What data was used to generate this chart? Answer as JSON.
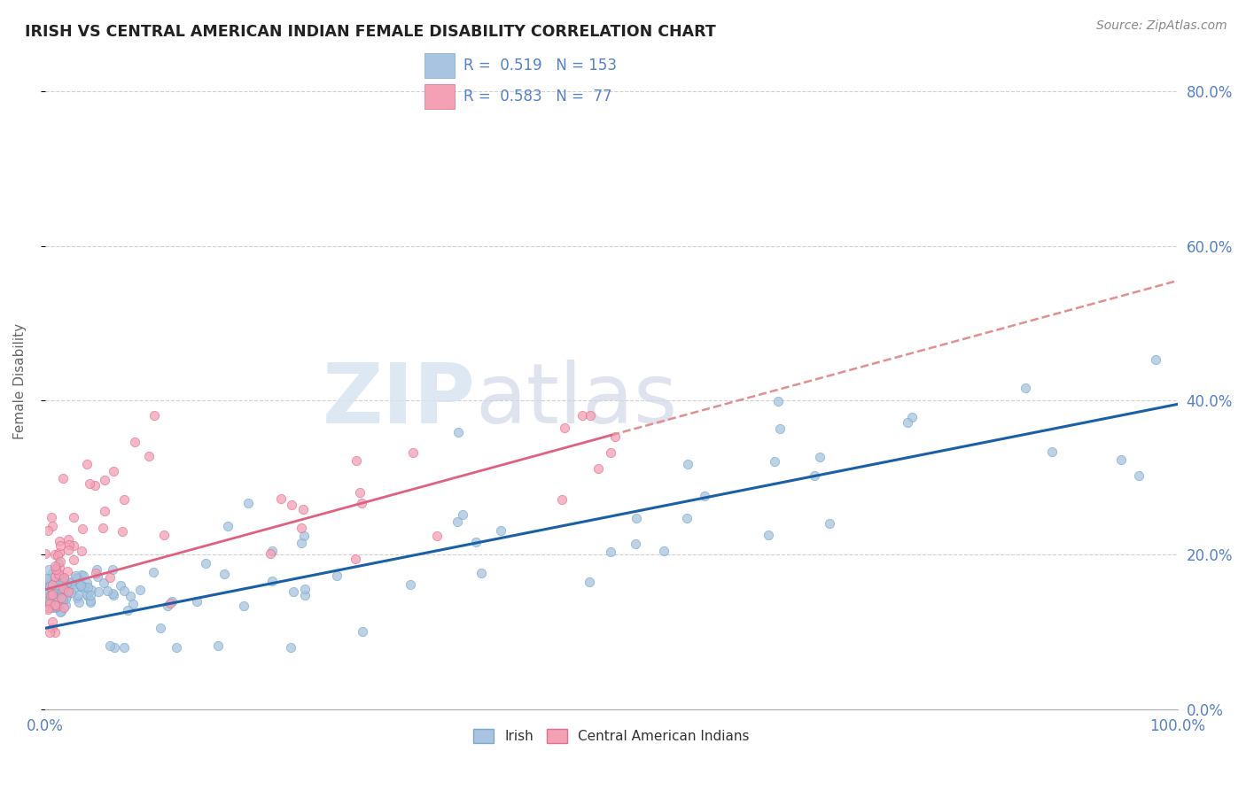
{
  "title": "IRISH VS CENTRAL AMERICAN INDIAN FEMALE DISABILITY CORRELATION CHART",
  "source": "Source: ZipAtlas.com",
  "ylabel": "Female Disability",
  "legend_labels": [
    "Irish",
    "Central American Indians"
  ],
  "R_irish": 0.519,
  "N_irish": 153,
  "R_cai": 0.583,
  "N_cai": 77,
  "irish_color": "#a8c4e0",
  "irish_edge_color": "#7aaac8",
  "cai_color": "#f4a0b5",
  "cai_edge_color": "#e07090",
  "irish_line_color": "#1a5fa8",
  "cai_line_color": "#e06080",
  "cai_dash_color": "#e09090",
  "background_color": "#ffffff",
  "grid_color": "#cccccc",
  "title_color": "#222222",
  "axis_label_color": "#5580cc",
  "watermark_zip": "ZIP",
  "watermark_atlas": "atlas",
  "xlim": [
    0.0,
    1.0
  ],
  "ylim": [
    0.0,
    0.85
  ],
  "y_ticks": [
    0.0,
    0.2,
    0.4,
    0.6,
    0.8
  ],
  "y_tick_labels": [
    "0.0%",
    "20.0%",
    "40.0%",
    "60.0%",
    "80.0%"
  ]
}
